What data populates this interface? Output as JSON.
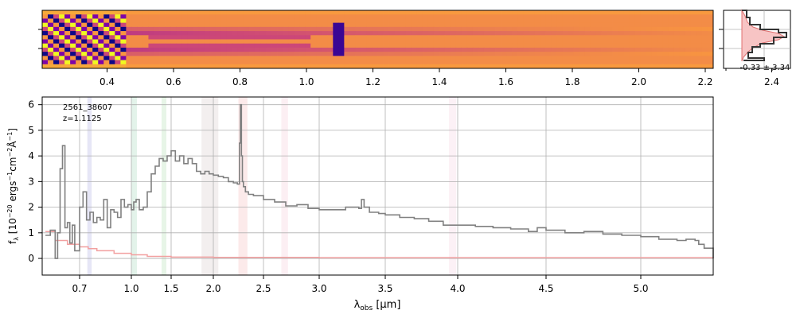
{
  "chart_data": [
    {
      "type": "heatmap",
      "name": "2D spectrum",
      "x_tick_labels": [
        "0.4",
        "0.6",
        "0.8",
        "1.0",
        "1.2",
        "1.4",
        "1.6",
        "1.8",
        "2.0",
        "2.2",
        "2.4"
      ],
      "x_ticks_um": [
        0.4,
        0.6,
        0.8,
        1.0,
        1.2,
        1.4,
        1.6,
        1.8,
        2.0,
        2.2,
        2.4
      ],
      "colormap": "plasma",
      "spatial_rows": 14,
      "bright_band_rows": [
        4,
        10
      ],
      "dark_trace_rows": [
        5,
        9
      ],
      "emission_line_um": 1.09
    },
    {
      "type": "line",
      "name": "spatial profile",
      "annotation": "-0.33 ± 3.34"
    },
    {
      "type": "line",
      "title": "",
      "object_id": "2561_38607",
      "redshift_label": "z=1.1125",
      "xlabel": "λobs [μm]",
      "ylabel": "fλ [10−20 ergs−1cm−2Å−1]",
      "xlim": [
        0.55,
        5.4
      ],
      "ylim": [
        -0.65,
        6.3
      ],
      "x_tick_labels": [
        "0.7",
        "1.0",
        "1.5",
        "2.0",
        "2.5",
        "3.0",
        "3.5",
        "4.0",
        "4.5",
        "5.0"
      ],
      "x_ticks_um": [
        0.7,
        1.0,
        1.5,
        2.0,
        2.5,
        3.0,
        3.5,
        4.0,
        4.5,
        5.0
      ],
      "y_ticks": [
        0,
        1,
        2,
        3,
        4,
        5,
        6
      ],
      "grid": true,
      "series": [
        {
          "color": "#808080",
          "x": [
            0.56,
            0.58,
            0.6,
            0.61,
            0.62,
            0.63,
            0.64,
            0.65,
            0.66,
            0.67,
            0.68,
            0.7,
            0.72,
            0.74,
            0.76,
            0.78,
            0.8,
            0.82,
            0.84,
            0.86,
            0.88,
            0.9,
            0.92,
            0.94,
            0.96,
            0.98,
            1.0,
            1.03,
            1.06,
            1.1,
            1.15,
            1.2,
            1.25,
            1.3,
            1.35,
            1.4,
            1.45,
            1.5,
            1.55,
            1.6,
            1.65,
            1.7,
            1.75,
            1.8,
            1.85,
            1.9,
            1.95,
            2.0,
            2.05,
            2.1,
            2.15,
            2.2,
            2.24,
            2.26,
            2.27,
            2.28,
            2.29,
            2.3,
            2.32,
            2.35,
            2.4,
            2.5,
            2.6,
            2.7,
            2.8,
            2.9,
            3.0,
            3.1,
            3.2,
            3.3,
            3.32,
            3.34,
            3.38,
            3.45,
            3.5,
            3.6,
            3.7,
            3.8,
            3.9,
            4.0,
            4.1,
            4.2,
            4.3,
            4.4,
            4.45,
            4.5,
            4.6,
            4.7,
            4.8,
            4.9,
            5.0,
            5.1,
            5.2,
            5.25,
            5.3,
            5.32,
            5.35,
            5.4
          ],
          "values": [
            0.9,
            1.1,
            0.0,
            1.0,
            3.5,
            4.4,
            1.2,
            1.4,
            0.6,
            1.3,
            0.3,
            2.0,
            2.6,
            1.5,
            1.8,
            1.4,
            1.6,
            1.5,
            2.3,
            1.2,
            1.9,
            1.8,
            1.6,
            2.3,
            2.0,
            2.1,
            1.9,
            2.2,
            2.3,
            1.9,
            2.0,
            2.6,
            3.3,
            3.6,
            3.9,
            3.8,
            4.0,
            4.2,
            3.8,
            4.0,
            3.7,
            3.9,
            3.7,
            3.4,
            3.3,
            3.4,
            3.3,
            3.25,
            3.2,
            3.15,
            3.0,
            2.95,
            2.9,
            4.5,
            6.0,
            4.0,
            3.0,
            2.8,
            2.6,
            2.5,
            2.45,
            2.3,
            2.2,
            2.05,
            2.1,
            1.95,
            1.9,
            1.9,
            2.0,
            1.95,
            2.3,
            2.0,
            1.8,
            1.75,
            1.7,
            1.6,
            1.55,
            1.45,
            1.3,
            1.3,
            1.25,
            1.2,
            1.15,
            1.05,
            1.2,
            1.1,
            1.0,
            1.05,
            0.95,
            0.9,
            0.85,
            0.75,
            0.7,
            0.75,
            0.7,
            0.55,
            0.4,
            0.0
          ]
        },
        {
          "color": "#f2a0a0",
          "x": [
            0.56,
            0.6,
            0.65,
            0.7,
            0.75,
            0.8,
            0.9,
            1.0,
            1.2,
            1.5,
            2.0,
            3.0,
            4.0,
            5.0,
            5.4
          ],
          "values": [
            1.05,
            0.7,
            0.55,
            0.45,
            0.38,
            0.3,
            0.2,
            0.14,
            0.08,
            0.05,
            0.04,
            0.03,
            0.03,
            0.03,
            0.02
          ]
        }
      ],
      "shaded_bands_um": [
        {
          "x": [
            0.745,
            0.77
          ],
          "color": "#8c8cd8"
        },
        {
          "x": [
            1.0,
            1.07
          ],
          "color": "#7fc8a0"
        },
        {
          "x": [
            1.38,
            1.44
          ],
          "color": "#90d090"
        },
        {
          "x": [
            1.86,
            2.05
          ],
          "color": "#c8b4b4"
        },
        {
          "x": [
            2.25,
            2.34
          ],
          "color": "#f0a0a0"
        },
        {
          "x": [
            2.66,
            2.72
          ],
          "color": "#f0b8c8"
        },
        {
          "x": [
            3.94,
            3.99
          ],
          "color": "#f0c0d8"
        }
      ]
    }
  ]
}
